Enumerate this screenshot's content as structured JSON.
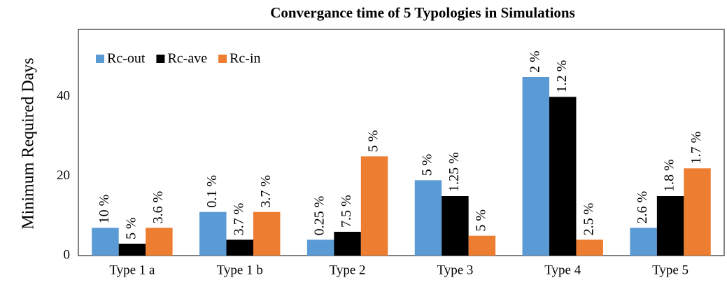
{
  "chart_data": {
    "type": "bar",
    "title": "Convergance time of 5 Typologies in Simulations",
    "y_label": "Minimum Required  Days",
    "categories": [
      "Type 1 a",
      "Type 1 b",
      "Type 2",
      "Type 3",
      "Type 4",
      "Type 5"
    ],
    "series": [
      {
        "name": "Rc-out",
        "color": "#5b9bd5",
        "values": [
          7,
          11,
          4,
          19,
          45,
          7
        ],
        "bar_labels": [
          "10 %",
          "0.1 %",
          "0.25 %",
          "5 %",
          "2 %",
          "2.6 %"
        ]
      },
      {
        "name": "Rc-ave",
        "color": "#000000",
        "values": [
          3,
          4,
          6,
          15,
          40,
          15
        ],
        "bar_labels": [
          "5 %",
          "3.7 %",
          "7.5 %",
          "1.25 %",
          "1.2 %",
          "1.8 %"
        ]
      },
      {
        "name": "Rc-in",
        "color": "#ed7d31",
        "values": [
          7,
          11,
          25,
          5,
          4,
          22
        ],
        "bar_labels": [
          "3.6 %",
          "3.7 %",
          "5 %",
          "5 %",
          "2.5 %",
          "1.7 %"
        ]
      }
    ],
    "ylim": [
      0,
      57
    ],
    "yticks": [
      0,
      20,
      40
    ],
    "grid": false,
    "legend": "top-left"
  }
}
